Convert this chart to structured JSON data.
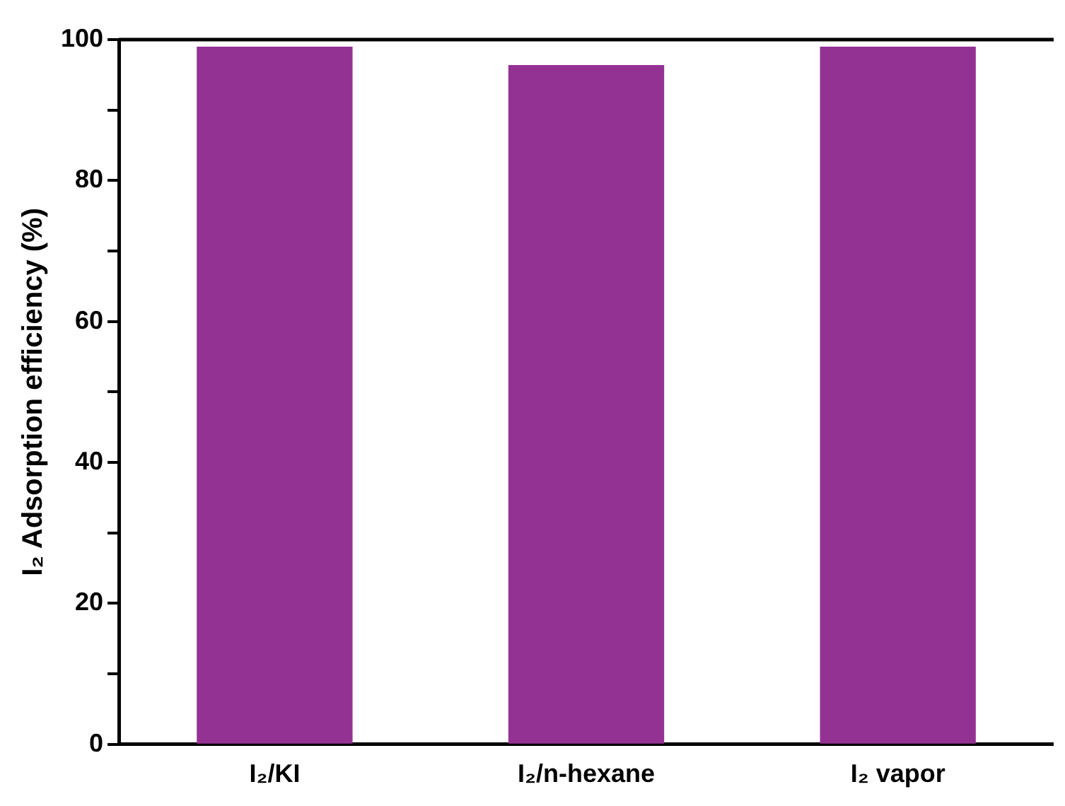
{
  "chart_data": {
    "type": "bar",
    "ylabel": "I₂ Adsorption efficiency (%)",
    "categories": [
      "I₂/KI",
      "I₂/n-hexane",
      "I₂ vapor"
    ],
    "values": [
      99,
      96.4,
      99
    ],
    "color": "#943293",
    "ylim": [
      0,
      100
    ],
    "yticks": [
      0,
      {
        "value": 10,
        "label": null
      },
      20,
      {
        "value": 30,
        "label": null
      },
      40,
      {
        "value": 50,
        "label": null
      },
      60,
      {
        "value": 70,
        "label": null
      },
      80,
      {
        "value": 90,
        "label": null
      },
      100
    ],
    "grid": false,
    "legend": false
  }
}
